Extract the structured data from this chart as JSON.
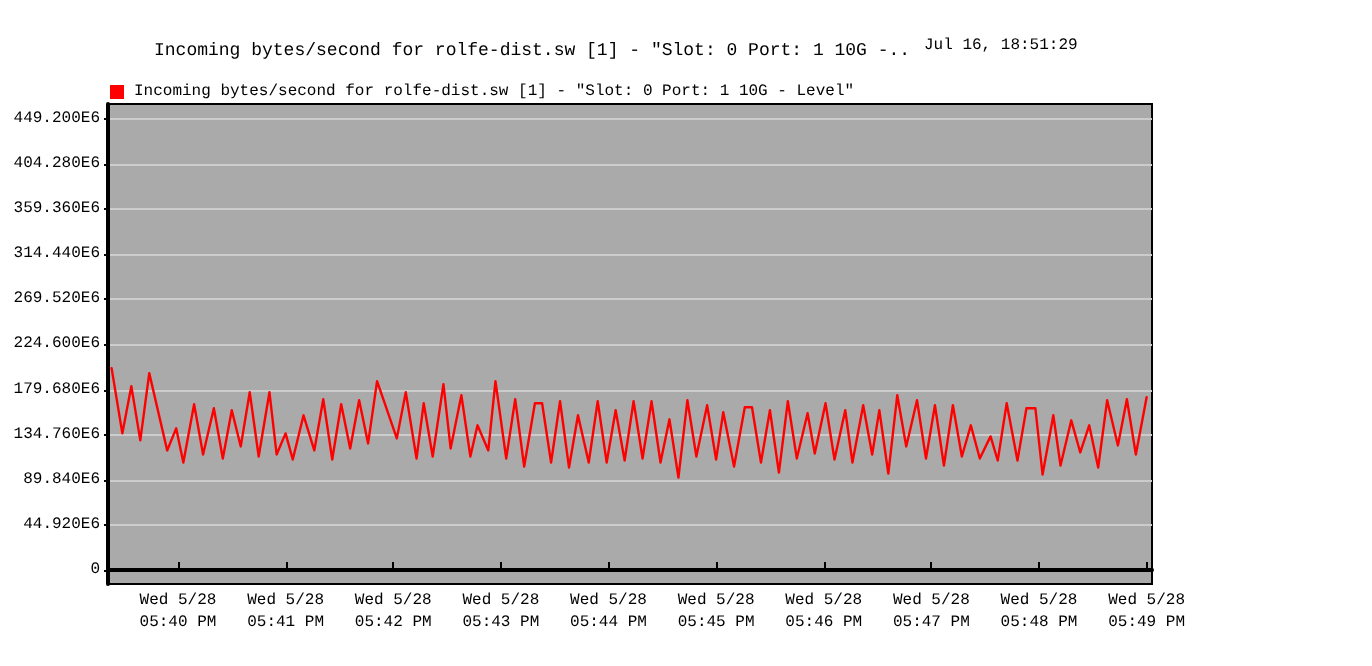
{
  "chart_data": {
    "type": "line",
    "title": "Incoming bytes/second for rolfe-dist.sw [1] - \"Slot: 0 Port: 1 10G -..",
    "annotations": [
      "Jul 16, 18:51:29"
    ],
    "x": [
      "--05-28T17:39:23",
      "--05-28T17:39:29",
      "--05-28T17:39:34",
      "--05-28T17:39:39",
      "--05-28T17:39:44",
      "--05-28T17:39:54",
      "--05-28T17:39:59",
      "--05-28T17:40:03",
      "--05-28T17:40:09",
      "--05-28T17:40:14",
      "--05-28T17:40:20",
      "--05-28T17:40:25",
      "--05-28T17:40:30",
      "--05-28T17:40:35",
      "--05-28T17:40:40",
      "--05-28T17:40:45",
      "--05-28T17:40:51",
      "--05-28T17:40:55",
      "--05-28T17:41:00",
      "--05-28T17:41:04",
      "--05-28T17:41:10",
      "--05-28T17:41:16",
      "--05-28T17:41:21",
      "--05-28T17:41:26",
      "--05-28T17:41:31",
      "--05-28T17:41:36",
      "--05-28T17:41:41",
      "--05-28T17:41:46",
      "--05-28T17:41:51",
      "--05-28T17:42:02",
      "--05-28T17:42:07",
      "--05-28T17:42:13",
      "--05-28T17:42:17",
      "--05-28T17:42:22",
      "--05-28T17:42:28",
      "--05-28T17:42:32",
      "--05-28T17:42:38",
      "--05-28T17:42:43",
      "--05-28T17:42:47",
      "--05-28T17:42:53",
      "--05-28T17:42:57",
      "--05-28T17:43:03",
      "--05-28T17:43:08",
      "--05-28T17:43:13",
      "--05-28T17:43:19",
      "--05-28T17:43:23",
      "--05-28T17:43:28",
      "--05-28T17:43:33",
      "--05-28T17:43:38",
      "--05-28T17:43:43",
      "--05-28T17:43:49",
      "--05-28T17:43:54",
      "--05-28T17:43:59",
      "--05-28T17:44:04",
      "--05-28T17:44:09",
      "--05-28T17:44:14",
      "--05-28T17:44:19",
      "--05-28T17:44:24",
      "--05-28T17:44:29",
      "--05-28T17:44:34",
      "--05-28T17:44:39",
      "--05-28T17:44:44",
      "--05-28T17:44:49",
      "--05-28T17:44:55",
      "--05-28T17:45:00",
      "--05-28T17:45:04",
      "--05-28T17:45:10",
      "--05-28T17:45:16",
      "--05-28T17:45:20",
      "--05-28T17:45:25",
      "--05-28T17:45:30",
      "--05-28T17:45:35",
      "--05-28T17:45:40",
      "--05-28T17:45:45",
      "--05-28T17:45:51",
      "--05-28T17:45:55",
      "--05-28T17:46:01",
      "--05-28T17:46:06",
      "--05-28T17:46:12",
      "--05-28T17:46:16",
      "--05-28T17:46:22",
      "--05-28T17:46:27",
      "--05-28T17:46:31",
      "--05-28T17:46:36",
      "--05-28T17:46:41",
      "--05-28T17:46:46",
      "--05-28T17:46:52",
      "--05-28T17:46:57",
      "--05-28T17:47:02",
      "--05-28T17:47:07",
      "--05-28T17:47:12",
      "--05-28T17:47:17",
      "--05-28T17:47:22",
      "--05-28T17:47:27",
      "--05-28T17:47:33",
      "--05-28T17:47:37",
      "--05-28T17:47:42",
      "--05-28T17:47:48",
      "--05-28T17:47:53",
      "--05-28T17:47:58",
      "--05-28T17:48:02",
      "--05-28T17:48:08",
      "--05-28T17:48:12",
      "--05-28T17:48:18",
      "--05-28T17:48:23",
      "--05-28T17:48:28",
      "--05-28T17:48:33",
      "--05-28T17:48:38",
      "--05-28T17:48:44",
      "--05-28T17:48:49",
      "--05-28T17:48:54",
      "--05-28T17:49:00"
    ],
    "series": [
      {
        "name": "Incoming bytes/second for rolfe-dist.sw [1] - \"Slot: 0 Port: 1 10G - Level\"",
        "color": "#ff0000",
        "values": [
          201000000,
          136000000,
          183000000,
          129000000,
          196000000,
          119000000,
          141000000,
          107000000,
          165000000,
          115000000,
          161000000,
          111000000,
          159000000,
          123000000,
          177000000,
          113000000,
          177000000,
          115000000,
          136000000,
          110000000,
          154000000,
          119000000,
          170000000,
          110000000,
          165000000,
          121000000,
          169000000,
          126000000,
          188000000,
          131000000,
          177000000,
          111000000,
          166000000,
          113000000,
          185000000,
          121000000,
          174000000,
          113000000,
          144000000,
          119000000,
          188000000,
          111000000,
          170000000,
          103000000,
          166000000,
          166000000,
          107000000,
          168000000,
          102000000,
          154000000,
          107000000,
          168000000,
          107000000,
          159000000,
          109000000,
          168000000,
          111000000,
          168000000,
          107000000,
          150000000,
          92000000,
          169000000,
          113000000,
          164000000,
          110000000,
          157000000,
          103000000,
          162000000,
          162000000,
          107000000,
          159000000,
          97000000,
          168000000,
          111000000,
          156000000,
          116000000,
          166000000,
          110000000,
          159000000,
          107000000,
          164000000,
          115000000,
          159000000,
          96000000,
          174000000,
          123000000,
          169000000,
          111000000,
          164000000,
          104000000,
          164000000,
          113000000,
          144000000,
          111000000,
          133000000,
          109000000,
          166000000,
          109000000,
          161000000,
          161000000,
          95000000,
          154000000,
          104000000,
          149000000,
          117000000,
          144000000,
          102000000,
          169000000,
          124000000,
          170000000,
          115000000,
          172000000
        ]
      }
    ],
    "xlim": [
      "--05-28T17:39:21",
      "--05-28T17:49:03"
    ],
    "xticks": [
      {
        "value": "--05-28T17:40",
        "label": "Wed 5/28\n05:40 PM"
      },
      {
        "value": "--05-28T17:41",
        "label": "Wed 5/28\n05:41 PM"
      },
      {
        "value": "--05-28T17:42",
        "label": "Wed 5/28\n05:42 PM"
      },
      {
        "value": "--05-28T17:43",
        "label": "Wed 5/28\n05:43 PM"
      },
      {
        "value": "--05-28T17:44",
        "label": "Wed 5/28\n05:44 PM"
      },
      {
        "value": "--05-28T17:45",
        "label": "Wed 5/28\n05:45 PM"
      },
      {
        "value": "--05-28T17:46",
        "label": "Wed 5/28\n05:46 PM"
      },
      {
        "value": "--05-28T17:47",
        "label": "Wed 5/28\n05:47 PM"
      },
      {
        "value": "--05-28T17:48",
        "label": "Wed 5/28\n05:48 PM"
      },
      {
        "value": "--05-28T17:49",
        "label": "Wed 5/28\n05:49 PM"
      }
    ],
    "ylim": [
      -14000000,
      464000000
    ],
    "yticks": [
      0,
      {
        "value": 44920000,
        "label": "44.920E6"
      },
      {
        "value": 89840000,
        "label": "89.840E6"
      },
      {
        "value": 134760000,
        "label": "134.760E6"
      },
      {
        "value": 179680000,
        "label": "179.680E6"
      },
      {
        "value": 224600000,
        "label": "224.600E6"
      },
      {
        "value": 269520000,
        "label": "269.520E6"
      },
      {
        "value": 314440000,
        "label": "314.440E6"
      },
      {
        "value": 359360000,
        "label": "359.360E6"
      },
      {
        "value": 404280000,
        "label": "404.280E6"
      },
      {
        "value": 449200000,
        "label": "449.200E6"
      }
    ],
    "grid": "y",
    "legend": "top left",
    "marker": "none",
    "line_style": "solid"
  }
}
